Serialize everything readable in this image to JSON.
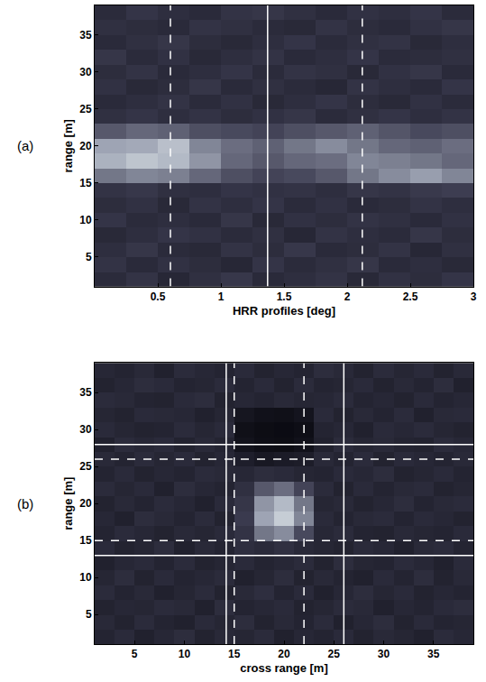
{
  "chart_data": [
    {
      "type": "heatmap",
      "label": "(a)",
      "xlabel": "HRR profiles [deg]",
      "ylabel": "range [m]",
      "xlim": [
        0,
        3
      ],
      "ylim": [
        1,
        39
      ],
      "xticks": [
        0.5,
        1,
        1.5,
        2,
        2.5,
        3
      ],
      "yticks": [
        5,
        10,
        15,
        20,
        25,
        30,
        35
      ],
      "zlim": [
        0,
        1
      ],
      "x": [
        0.125,
        0.375,
        0.625,
        0.875,
        1.125,
        1.375,
        1.625,
        1.875,
        2.125,
        2.375,
        2.625,
        2.875
      ],
      "y": [
        2,
        4,
        6,
        8,
        10,
        12,
        14,
        16,
        18,
        20,
        22,
        24,
        26,
        28,
        30,
        32,
        34,
        36,
        38
      ],
      "cells": [
        [
          0.25,
          0.3,
          0.22,
          0.28,
          0.33,
          0.24,
          0.27,
          0.3,
          0.23,
          0.29,
          0.26,
          0.31
        ],
        [
          0.3,
          0.24,
          0.29,
          0.26,
          0.22,
          0.31,
          0.25,
          0.28,
          0.32,
          0.24,
          0.27,
          0.23
        ],
        [
          0.27,
          0.32,
          0.25,
          0.23,
          0.3,
          0.26,
          0.33,
          0.24,
          0.26,
          0.3,
          0.22,
          0.28
        ],
        [
          0.23,
          0.27,
          0.31,
          0.29,
          0.25,
          0.28,
          0.22,
          0.3,
          0.27,
          0.25,
          0.32,
          0.26
        ],
        [
          0.31,
          0.25,
          0.27,
          0.24,
          0.32,
          0.23,
          0.29,
          0.26,
          0.3,
          0.28,
          0.24,
          0.29
        ],
        [
          0.26,
          0.29,
          0.23,
          0.3,
          0.27,
          0.31,
          0.25,
          0.29,
          0.24,
          0.26,
          0.3,
          0.27
        ],
        [
          0.3,
          0.33,
          0.28,
          0.27,
          0.31,
          0.29,
          0.3,
          0.27,
          0.32,
          0.3,
          0.34,
          0.36
        ],
        [
          0.55,
          0.6,
          0.58,
          0.5,
          0.42,
          0.38,
          0.4,
          0.45,
          0.55,
          0.62,
          0.68,
          0.6
        ],
        [
          0.75,
          0.82,
          0.78,
          0.65,
          0.5,
          0.45,
          0.5,
          0.52,
          0.6,
          0.58,
          0.55,
          0.5
        ],
        [
          0.7,
          0.72,
          0.8,
          0.6,
          0.52,
          0.48,
          0.55,
          0.62,
          0.55,
          0.5,
          0.48,
          0.52
        ],
        [
          0.45,
          0.5,
          0.48,
          0.42,
          0.4,
          0.38,
          0.42,
          0.45,
          0.48,
          0.44,
          0.4,
          0.42
        ],
        [
          0.28,
          0.31,
          0.27,
          0.3,
          0.26,
          0.29,
          0.32,
          0.25,
          0.28,
          0.31,
          0.27,
          0.3
        ],
        [
          0.24,
          0.27,
          0.3,
          0.25,
          0.29,
          0.23,
          0.27,
          0.31,
          0.26,
          0.23,
          0.29,
          0.25
        ],
        [
          0.29,
          0.23,
          0.26,
          0.32,
          0.24,
          0.28,
          0.25,
          0.22,
          0.3,
          0.27,
          0.24,
          0.31
        ],
        [
          0.26,
          0.3,
          0.24,
          0.27,
          0.31,
          0.25,
          0.3,
          0.28,
          0.23,
          0.29,
          0.32,
          0.24
        ],
        [
          0.32,
          0.25,
          0.29,
          0.23,
          0.27,
          0.3,
          0.24,
          0.27,
          0.31,
          0.25,
          0.26,
          0.28
        ],
        [
          0.24,
          0.28,
          0.32,
          0.26,
          0.23,
          0.27,
          0.31,
          0.25,
          0.28,
          0.3,
          0.23,
          0.27
        ],
        [
          0.28,
          0.26,
          0.24,
          0.3,
          0.28,
          0.25,
          0.23,
          0.3,
          0.26,
          0.24,
          0.29,
          0.32
        ],
        [
          0.25,
          0.31,
          0.27,
          0.24,
          0.3,
          0.32,
          0.28,
          0.24,
          0.29,
          0.27,
          0.31,
          0.25
        ]
      ],
      "vlines": [
        {
          "x": 0.6,
          "line_style": "dashed"
        },
        {
          "x": 1.37,
          "line_style": "solid"
        },
        {
          "x": 2.12,
          "line_style": "dashed"
        }
      ],
      "hlines": []
    },
    {
      "type": "heatmap",
      "label": "(b)",
      "xlabel": "cross range [m]",
      "ylabel": "range [m]",
      "xlim": [
        1,
        39
      ],
      "ylim": [
        1,
        39
      ],
      "xticks": [
        5,
        10,
        15,
        20,
        25,
        30,
        35
      ],
      "yticks": [
        5,
        10,
        15,
        20,
        25,
        30,
        35
      ],
      "zlim": [
        0,
        1
      ],
      "x": [
        2,
        4,
        6,
        8,
        10,
        12,
        14,
        16,
        18,
        20,
        22,
        24,
        26,
        28,
        30,
        32,
        34,
        36,
        38
      ],
      "y": [
        2,
        4,
        6,
        8,
        10,
        12,
        14,
        16,
        18,
        20,
        22,
        24,
        26,
        28,
        30,
        32,
        34,
        36,
        38
      ],
      "cells": [
        [
          0.2,
          0.24,
          0.18,
          0.22,
          0.26,
          0.19,
          0.23,
          0.21,
          0.25,
          0.18,
          0.22,
          0.2,
          0.24,
          0.19,
          0.23,
          0.21,
          0.18,
          0.25,
          0.22
        ],
        [
          0.23,
          0.19,
          0.25,
          0.2,
          0.18,
          0.24,
          0.21,
          0.26,
          0.19,
          0.23,
          0.2,
          0.25,
          0.18,
          0.22,
          0.26,
          0.19,
          0.24,
          0.2,
          0.21
        ],
        [
          0.19,
          0.22,
          0.21,
          0.25,
          0.23,
          0.18,
          0.26,
          0.2,
          0.22,
          0.24,
          0.19,
          0.21,
          0.25,
          0.23,
          0.18,
          0.22,
          0.2,
          0.24,
          0.26
        ],
        [
          0.25,
          0.2,
          0.23,
          0.18,
          0.21,
          0.25,
          0.19,
          0.23,
          0.27,
          0.2,
          0.24,
          0.18,
          0.22,
          0.26,
          0.21,
          0.24,
          0.19,
          0.22,
          0.2
        ],
        [
          0.21,
          0.26,
          0.19,
          0.24,
          0.2,
          0.22,
          0.25,
          0.18,
          0.21,
          0.26,
          0.19,
          0.23,
          0.2,
          0.18,
          0.24,
          0.2,
          0.26,
          0.19,
          0.23
        ],
        [
          0.18,
          0.22,
          0.24,
          0.2,
          0.25,
          0.19,
          0.21,
          0.24,
          0.2,
          0.22,
          0.25,
          0.19,
          0.26,
          0.21,
          0.2,
          0.25,
          0.22,
          0.18,
          0.24
        ],
        [
          0.24,
          0.19,
          0.21,
          0.26,
          0.18,
          0.23,
          0.2,
          0.27,
          0.24,
          0.28,
          0.23,
          0.21,
          0.19,
          0.24,
          0.22,
          0.18,
          0.23,
          0.25,
          0.2
        ],
        [
          0.2,
          0.25,
          0.22,
          0.19,
          0.23,
          0.21,
          0.24,
          0.3,
          0.55,
          0.62,
          0.4,
          0.22,
          0.25,
          0.2,
          0.19,
          0.23,
          0.21,
          0.2,
          0.24
        ],
        [
          0.22,
          0.18,
          0.26,
          0.23,
          0.2,
          0.25,
          0.19,
          0.35,
          0.7,
          0.85,
          0.6,
          0.24,
          0.2,
          0.23,
          0.25,
          0.2,
          0.24,
          0.22,
          0.19
        ],
        [
          0.19,
          0.23,
          0.2,
          0.25,
          0.22,
          0.18,
          0.24,
          0.32,
          0.65,
          0.78,
          0.55,
          0.21,
          0.23,
          0.19,
          0.22,
          0.26,
          0.2,
          0.23,
          0.25
        ],
        [
          0.25,
          0.21,
          0.24,
          0.18,
          0.26,
          0.22,
          0.2,
          0.28,
          0.45,
          0.52,
          0.38,
          0.25,
          0.19,
          0.24,
          0.2,
          0.23,
          0.25,
          0.19,
          0.21
        ],
        [
          0.2,
          0.24,
          0.19,
          0.22,
          0.2,
          0.25,
          0.23,
          0.22,
          0.26,
          0.24,
          0.21,
          0.2,
          0.24,
          0.22,
          0.26,
          0.19,
          0.21,
          0.24,
          0.2
        ],
        [
          0.23,
          0.2,
          0.25,
          0.21,
          0.24,
          0.19,
          0.22,
          0.16,
          0.12,
          0.14,
          0.15,
          0.23,
          0.2,
          0.25,
          0.19,
          0.24,
          0.22,
          0.2,
          0.23
        ],
        [
          0.18,
          0.25,
          0.22,
          0.24,
          0.19,
          0.23,
          0.2,
          0.08,
          0.05,
          0.04,
          0.07,
          0.18,
          0.25,
          0.21,
          0.23,
          0.2,
          0.19,
          0.25,
          0.22
        ],
        [
          0.24,
          0.21,
          0.19,
          0.2,
          0.25,
          0.21,
          0.24,
          0.06,
          0.04,
          0.03,
          0.05,
          0.2,
          0.22,
          0.18,
          0.24,
          0.22,
          0.25,
          0.21,
          0.19
        ],
        [
          0.21,
          0.19,
          0.24,
          0.23,
          0.22,
          0.18,
          0.21,
          0.1,
          0.07,
          0.06,
          0.09,
          0.24,
          0.19,
          0.23,
          0.2,
          0.25,
          0.18,
          0.23,
          0.24
        ],
        [
          0.25,
          0.23,
          0.2,
          0.19,
          0.24,
          0.26,
          0.19,
          0.22,
          0.2,
          0.23,
          0.21,
          0.22,
          0.25,
          0.2,
          0.22,
          0.19,
          0.24,
          0.2,
          0.22
        ],
        [
          0.19,
          0.22,
          0.26,
          0.24,
          0.2,
          0.21,
          0.25,
          0.2,
          0.24,
          0.19,
          0.25,
          0.2,
          0.21,
          0.24,
          0.19,
          0.23,
          0.2,
          0.26,
          0.18
        ],
        [
          0.22,
          0.2,
          0.23,
          0.18,
          0.25,
          0.22,
          0.2,
          0.24,
          0.19,
          0.22,
          0.2,
          0.26,
          0.23,
          0.19,
          0.25,
          0.21,
          0.24,
          0.19,
          0.23
        ]
      ],
      "vlines": [
        {
          "x": 14.2,
          "line_style": "solid"
        },
        {
          "x": 15,
          "line_style": "dashed"
        },
        {
          "x": 22,
          "line_style": "dashed"
        },
        {
          "x": 26,
          "line_style": "solid"
        }
      ],
      "hlines": [
        {
          "y": 13,
          "line_style": "solid"
        },
        {
          "y": 15,
          "line_style": "dashed"
        },
        {
          "y": 26,
          "line_style": "dashed"
        },
        {
          "y": 28,
          "line_style": "solid"
        }
      ]
    }
  ]
}
